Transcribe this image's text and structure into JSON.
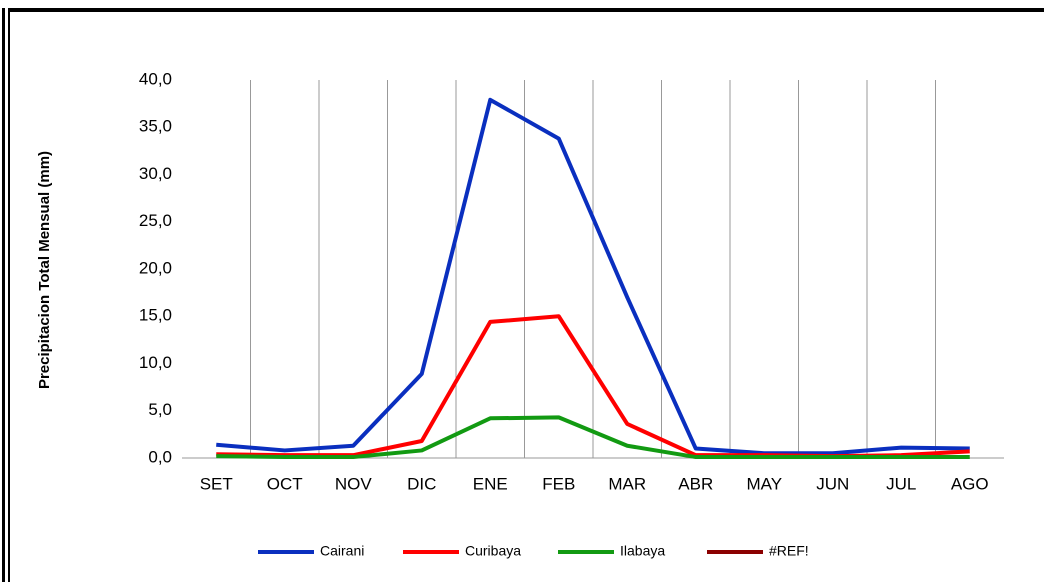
{
  "chart_data": {
    "type": "line",
    "y_label": "Precipitacion  Total Mensual (mm)",
    "categories": [
      "SET",
      "OCT",
      "NOV",
      "DIC",
      "ENE",
      "FEB",
      "MAR",
      "ABR",
      "MAY",
      "JUN",
      "JUL",
      "AGO"
    ],
    "series": [
      {
        "name": "Cairani",
        "color": "#0a2fbf",
        "values": [
          1.4,
          0.8,
          1.3,
          8.9,
          37.9,
          33.8,
          17.0,
          1.0,
          0.5,
          0.5,
          1.1,
          1.0
        ]
      },
      {
        "name": "Curibaya",
        "color": "#ff0000",
        "values": [
          0.4,
          0.3,
          0.3,
          1.8,
          14.4,
          15.0,
          3.6,
          0.3,
          0.3,
          0.2,
          0.3,
          0.7
        ]
      },
      {
        "name": "Ilabaya",
        "color": "#129a12",
        "values": [
          0.2,
          0.1,
          0.1,
          0.8,
          4.2,
          4.3,
          1.3,
          0.1,
          0.1,
          0.1,
          0.1,
          0.1
        ]
      },
      {
        "name": "#REF!",
        "color": "#8b0000",
        "values": [
          null,
          null,
          null,
          null,
          null,
          null,
          null,
          null,
          null,
          null,
          null,
          null
        ]
      }
    ],
    "ylim": [
      0,
      40
    ],
    "yticks": [
      {
        "value": 0,
        "label": "0,0"
      },
      {
        "value": 5,
        "label": "5,0"
      },
      {
        "value": 10,
        "label": "10,0"
      },
      {
        "value": 15,
        "label": "15,0"
      },
      {
        "value": 20,
        "label": "20,0"
      },
      {
        "value": 25,
        "label": "25,0"
      },
      {
        "value": 30,
        "label": "30,0"
      },
      {
        "value": 35,
        "label": "35,0"
      },
      {
        "value": 40,
        "label": "40,0"
      }
    ],
    "grid": "vertical",
    "legend": "bottom"
  }
}
